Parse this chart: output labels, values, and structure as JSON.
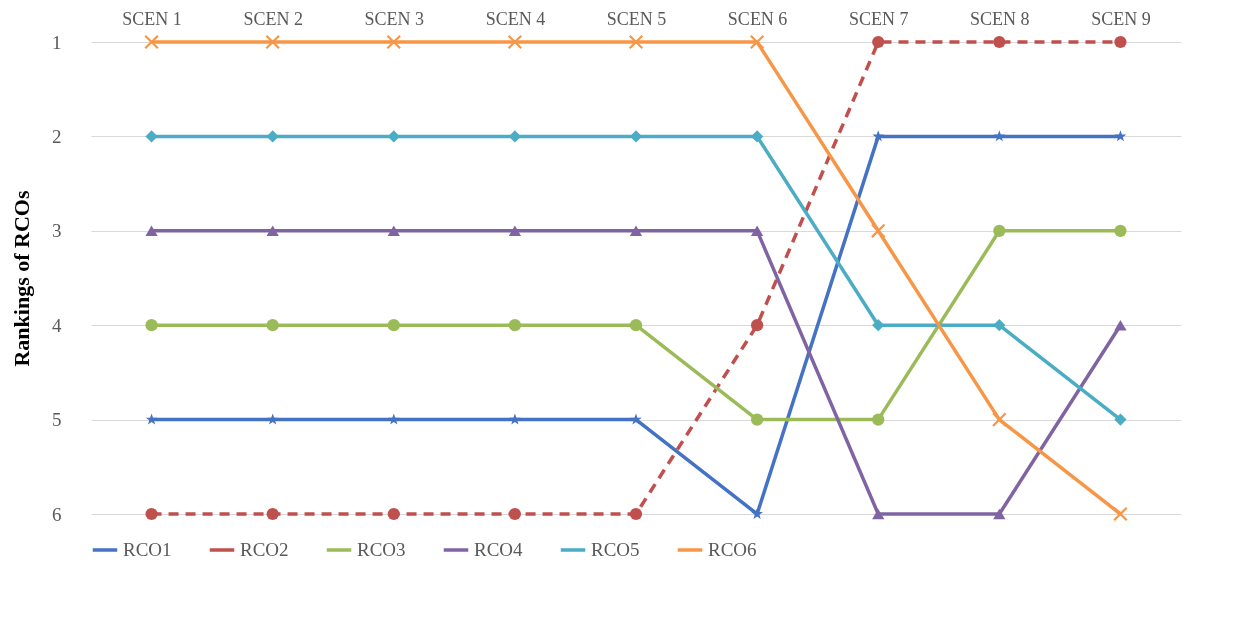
{
  "chart_data": {
    "type": "line",
    "ylabel": "Rankings of RCOs",
    "categories": [
      "SCEN 1",
      "SCEN 2",
      "SCEN 3",
      "SCEN 4",
      "SCEN 5",
      "SCEN 6",
      "SCEN 7",
      "SCEN 8",
      "SCEN 9"
    ],
    "ylim": [
      6,
      1
    ],
    "yticks": [
      1,
      2,
      3,
      4,
      5,
      6
    ],
    "grid": "y",
    "legend": "bottom",
    "series": [
      {
        "name": "RCO1",
        "color": "#4472c4",
        "marker": "star",
        "line_style": "solid",
        "values": [
          5,
          5,
          5,
          5,
          5,
          6,
          2,
          2,
          2
        ]
      },
      {
        "name": "RCO2",
        "color": "#c0504d",
        "marker": "circle",
        "line_style": "dashed",
        "values": [
          6,
          6,
          6,
          6,
          6,
          4,
          1,
          1,
          1
        ]
      },
      {
        "name": "RCO3",
        "color": "#9bbb59",
        "marker": "circle",
        "line_style": "solid",
        "values": [
          4,
          4,
          4,
          4,
          4,
          5,
          5,
          3,
          3
        ]
      },
      {
        "name": "RCO4",
        "color": "#8064a2",
        "marker": "triangle",
        "line_style": "solid",
        "values": [
          3,
          3,
          3,
          3,
          3,
          3,
          6,
          6,
          4
        ]
      },
      {
        "name": "RCO5",
        "color": "#4bacc6",
        "marker": "diamond",
        "line_style": "solid",
        "values": [
          2,
          2,
          2,
          2,
          2,
          2,
          4,
          4,
          5
        ]
      },
      {
        "name": "RCO6",
        "color": "#f79646",
        "marker": "cross",
        "line_style": "solid",
        "values": [
          1,
          1,
          1,
          1,
          1,
          1,
          3,
          5,
          6
        ]
      }
    ]
  }
}
